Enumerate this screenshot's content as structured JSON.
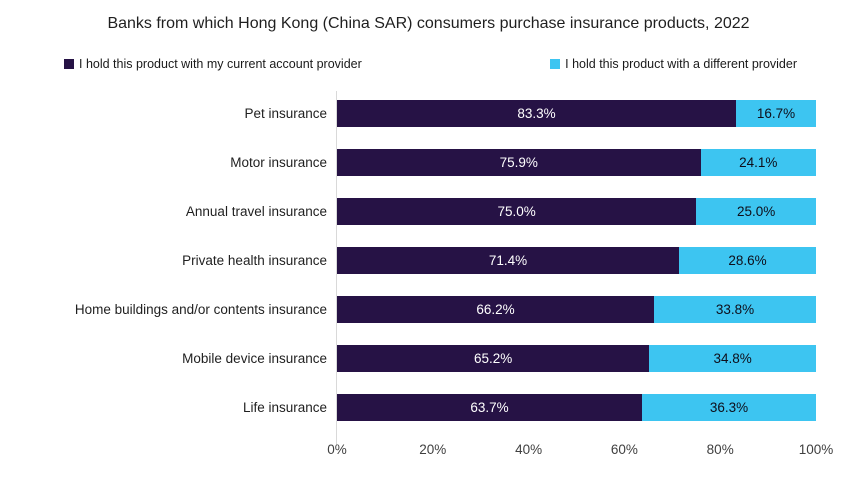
{
  "title": {
    "text": "Banks from which Hong Kong (China SAR) consumers purchase insurance products, 2022"
  },
  "legend": {
    "items": [
      {
        "label": "I hold this product with my current account provider",
        "color": "#261245"
      },
      {
        "label": "I hold this product with a different provider",
        "color": "#3DC5F1"
      }
    ]
  },
  "chart_data": {
    "type": "bar",
    "orientation": "horizontal",
    "stacked": true,
    "title": "Banks from which Hong Kong (China SAR) consumers purchase insurance products, 2022",
    "categories": [
      "Pet insurance",
      "Motor insurance",
      "Annual travel insurance",
      "Private health insurance",
      "Home buildings and/or contents insurance",
      "Mobile device insurance",
      "Life insurance"
    ],
    "series": [
      {
        "name": "I hold this product with my current account provider",
        "color": "#261245",
        "label_color": "#ffffff",
        "values": [
          83.3,
          75.9,
          75.0,
          71.4,
          66.2,
          65.2,
          63.7
        ]
      },
      {
        "name": "I hold this product with a different provider",
        "color": "#3DC5F1",
        "label_color": "#0e0e1a",
        "values": [
          16.7,
          24.1,
          25.0,
          28.6,
          33.8,
          34.8,
          36.3
        ]
      }
    ],
    "x_ticks": [
      "0%",
      "20%",
      "40%",
      "60%",
      "80%",
      "100%"
    ],
    "xlim": [
      0,
      100
    ],
    "value_suffix": "%",
    "grid": false,
    "legend_position": "top"
  }
}
